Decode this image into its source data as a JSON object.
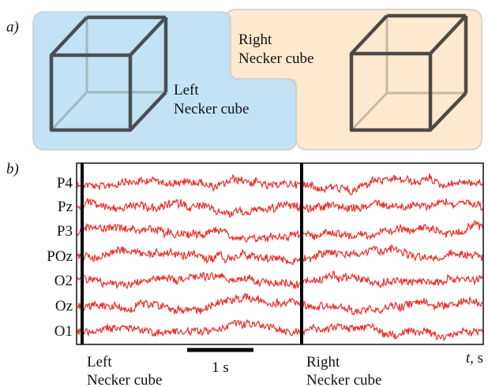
{
  "panel_a": {
    "label": "a)",
    "left_cube": {
      "lines": [
        "Left",
        "Necker cube"
      ]
    },
    "right_cube": {
      "lines": [
        "Right",
        "Necker cube"
      ]
    }
  },
  "panel_b": {
    "label": "b)",
    "channels": [
      "P4",
      "Pz",
      "P3",
      "POz",
      "O2",
      "Oz",
      "O1"
    ],
    "scale_bar_label": "1 s",
    "axis_label": {
      "var": "t",
      "unit": ", s"
    },
    "left_marker": {
      "lines": [
        "Left",
        "Necker cube"
      ]
    },
    "right_marker": {
      "lines": [
        "Right",
        "Necker cube"
      ]
    }
  }
}
